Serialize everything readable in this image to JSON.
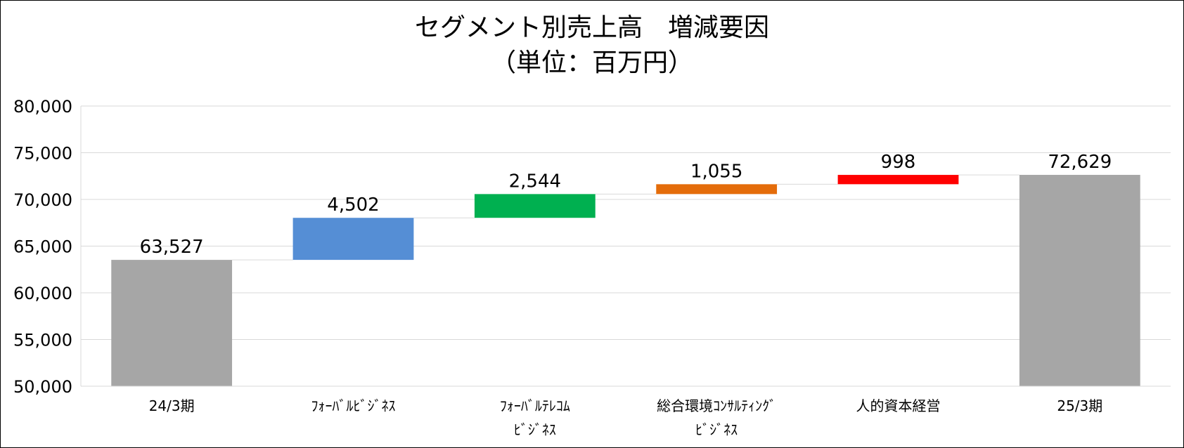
{
  "chart_data": {
    "type": "waterfall",
    "title": "セグメント別売上高　増減要因",
    "subtitle": "（単位：百万円）",
    "categories": [
      [
        "24/3期"
      ],
      [
        "ﾌｫｰﾊﾞﾙﾋﾞｼﾞﾈｽ"
      ],
      [
        "ﾌｫｰﾊﾞﾙﾃﾚｺﾑ",
        "ﾋﾞｼﾞﾈｽ"
      ],
      [
        "総合環境ｺﾝｻﾙﾃｨﾝｸﾞ",
        "ﾋﾞｼﾞﾈｽ"
      ],
      [
        "人的資本経営"
      ],
      [
        "25/3期"
      ]
    ],
    "bars": [
      {
        "kind": "total",
        "start": 50000,
        "end": 63527,
        "label": "63,527",
        "color": "#a6a6a6"
      },
      {
        "kind": "delta",
        "start": 63527,
        "end": 68029,
        "label": "4,502",
        "color": "#558ed5"
      },
      {
        "kind": "delta",
        "start": 68029,
        "end": 70573,
        "label": "2,544",
        "color": "#00b050"
      },
      {
        "kind": "delta",
        "start": 70573,
        "end": 71628,
        "label": "1,055",
        "color": "#e46c0a"
      },
      {
        "kind": "delta",
        "start": 71628,
        "end": 72626,
        "label": "998",
        "color": "#ff0000"
      },
      {
        "kind": "total",
        "start": 50000,
        "end": 72629,
        "label": "72,629",
        "color": "#a6a6a6"
      }
    ],
    "yticks": [
      "50,000",
      "55,000",
      "60,000",
      "65,000",
      "70,000",
      "75,000",
      "80,000"
    ],
    "ylim": [
      50000,
      80000
    ],
    "grid": true,
    "legend": "none"
  }
}
